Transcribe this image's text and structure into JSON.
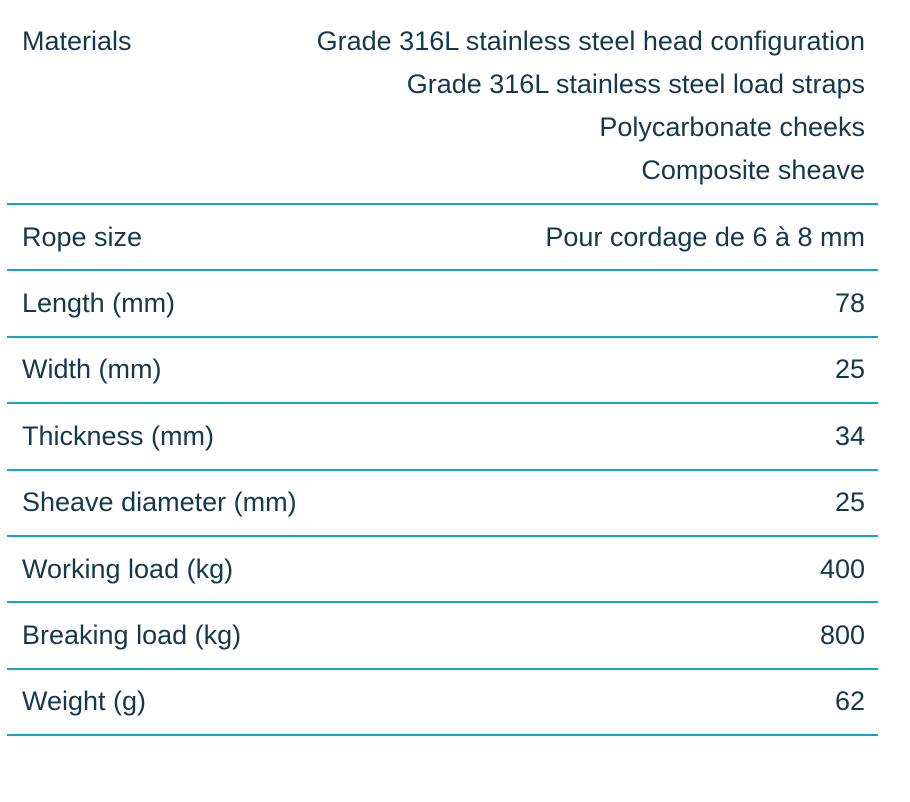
{
  "colors": {
    "background": "#ffffff",
    "text": "#16384d",
    "divider": "#11a7c9"
  },
  "table": {
    "rows": [
      {
        "label": "Materials",
        "values": [
          "Grade 316L stainless steel head configuration",
          "Grade 316L stainless steel load straps",
          "Polycarbonate cheeks",
          "Composite sheave"
        ]
      },
      {
        "label": "Rope size",
        "value": "Pour cordage de 6 à 8 mm"
      },
      {
        "label": "Length (mm)",
        "value": "78"
      },
      {
        "label": "Width (mm)",
        "value": "25"
      },
      {
        "label": "Thickness (mm)",
        "value": "34"
      },
      {
        "label": "Sheave diameter (mm)",
        "value": "25"
      },
      {
        "label": "Working load (kg)",
        "value": "400"
      },
      {
        "label": "Breaking load (kg)",
        "value": "800"
      },
      {
        "label": "Weight (g)",
        "value": "62"
      }
    ]
  }
}
